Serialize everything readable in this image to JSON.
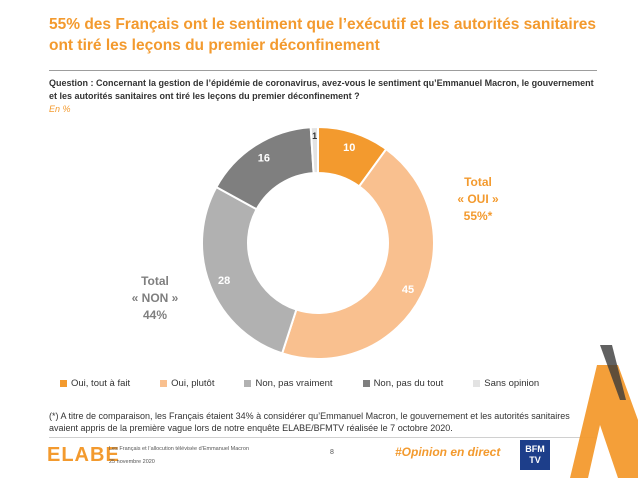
{
  "title": "55% des Français ont le sentiment que l’exécutif et les autorités sanitaires ont tiré les leçons du premier déconfinement",
  "question": "Question : Concernant la gestion de l’épidémie de coronavirus, avez-vous le sentiment qu’Emmanuel Macron, le gouvernement et les autorités sanitaires ont tiré les leçons du premier déconfinement ?",
  "unit": "En %",
  "colors": {
    "accent": "#f39a2e",
    "oui_tout_a_fait": "#f39a2e",
    "oui_plutot": "#f9c08f",
    "non_pas_vraiment": "#b1b1b1",
    "non_pas_du_tout": "#7f7f7f",
    "sans_opinion": "#e3e3e3"
  },
  "chart_data": {
    "type": "pie",
    "donut": true,
    "slices": [
      {
        "label": "Oui, tout à fait",
        "value": 10,
        "color": "#f39a2e"
      },
      {
        "label": "Oui, plutôt",
        "value": 45,
        "color": "#f9c08f"
      },
      {
        "label": "Non, pas vraiment",
        "value": 28,
        "color": "#b1b1b1"
      },
      {
        "label": "Non, pas du tout",
        "value": 16,
        "color": "#7f7f7f"
      },
      {
        "label": "Sans opinion",
        "value": 1,
        "color": "#e3e3e3"
      }
    ],
    "legend_position": "bottom",
    "annotations": {
      "total_oui": [
        "Total",
        "« OUI »",
        "55%*"
      ],
      "total_non": [
        "Total",
        "« NON »",
        "44%"
      ]
    }
  },
  "footnote": "(*) A titre de comparaison, les Français étaient 34% à considérer qu’Emmanuel Macron, le gouvernement et les autorités sanitaires avaient appris de la première vague lors de notre enquête ELABE/BFMTV réalisée le 7 octobre 2020.",
  "footer": {
    "logo": "ELABE",
    "study": "Les Français et l’allocution télévisée d’Emmanuel Macron",
    "date": "25 novembre 2020",
    "page": "8",
    "hashtag": "#Opinion en direct",
    "partner_logo": "BFM TV"
  }
}
